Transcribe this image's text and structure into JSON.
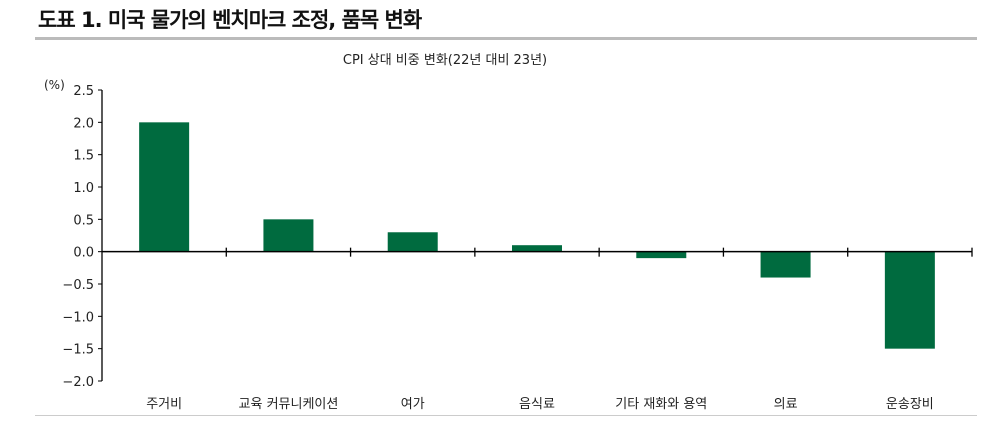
{
  "header": {
    "title": "도표 1. 미국 물가의 벤치마크 조정, 품목 변화"
  },
  "chart_data": {
    "type": "bar",
    "title": "CPI 상대 비중 변화(22년 대비 23년)",
    "ylabel": "(%)",
    "categories": [
      "주거비",
      "교육 커뮤니케이션",
      "여가",
      "음식료",
      "기타 재화와 용역",
      "의료",
      "운송장비"
    ],
    "values": [
      2.0,
      0.5,
      0.3,
      0.1,
      -0.1,
      -0.4,
      -1.5
    ],
    "ylim": [
      -2.0,
      2.5
    ],
    "yticks": [
      "2.5",
      "2.0",
      "1.5",
      "1.0",
      "0.5",
      "0.0",
      "-0.5",
      "-1.0",
      "-1.5",
      "-2.0"
    ],
    "grid": false,
    "bar_color": "#006b3f"
  }
}
